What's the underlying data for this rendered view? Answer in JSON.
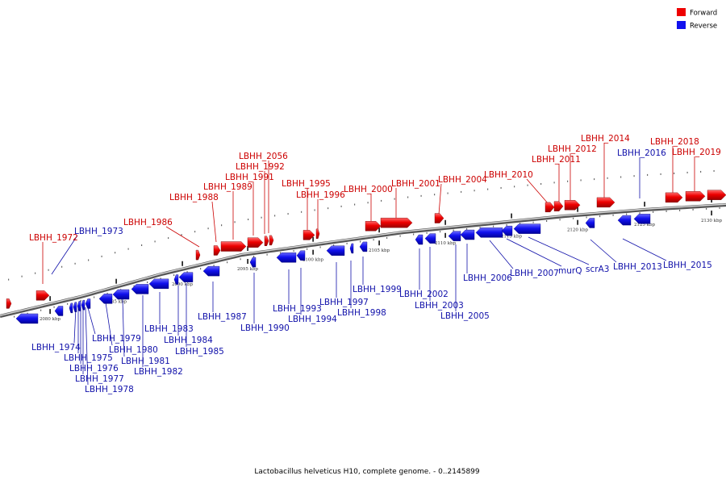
{
  "caption": "Lactobacillus helveticus H10, complete genome. - 0..2145899",
  "legend": {
    "forward": {
      "label": "Forward",
      "color": "#ee0000"
    },
    "reverse": {
      "label": "Reverse",
      "color": "#1111ee"
    }
  },
  "ticks": [
    "2080 kbp",
    "2085 kbp",
    "2090 kbp",
    "2095 kbp",
    "2100 kbp",
    "2105 kbp",
    "2110 kbp",
    "2115 kbp",
    "2120 kbp",
    "2125 kbp",
    "2130 kbp"
  ],
  "genes_forward": [
    "LBHH_1972",
    "LBHH_1986",
    "LBHH_1988",
    "LBHH_1989",
    "LBHH_1991",
    "LBHH_1992",
    "LBHH_2056",
    "LBHH_1995",
    "LBHH_1996",
    "LBHH_2000",
    "LBHH_2001",
    "LBHH_2004",
    "LBHH_2010",
    "LBHH_2011",
    "LBHH_2012",
    "LBHH_2014",
    "LBHH_2018",
    "LBHH_2019"
  ],
  "genes_reverse": [
    "LBHH_1973",
    "LBHH_1974",
    "LBHH_1975",
    "LBHH_1976",
    "LBHH_1977",
    "LBHH_1978",
    "LBHH_1979",
    "LBHH_1980",
    "LBHH_1981",
    "LBHH_1982",
    "LBHH_1983",
    "LBHH_1984",
    "LBHH_1985",
    "LBHH_1987",
    "LBHH_1990",
    "LBHH_1993",
    "LBHH_1994",
    "LBHH_1997",
    "LBHH_1998",
    "LBHH_1999",
    "LBHH_2002",
    "LBHH_2003",
    "LBHH_2005",
    "LBHH_2006",
    "LBHH_2007",
    "murQ",
    "scrA3",
    "LBHH_2013",
    "LBHH_2015",
    "LBHH_2016"
  ]
}
